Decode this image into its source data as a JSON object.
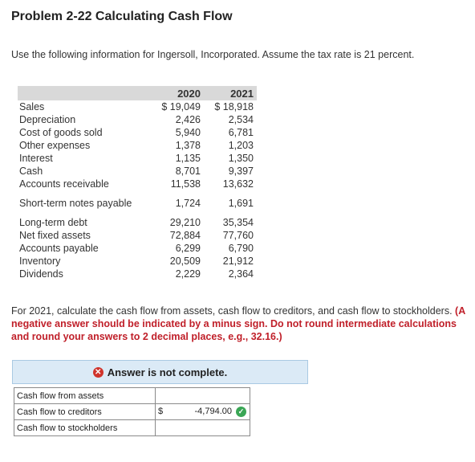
{
  "title": "Problem 2-22 Calculating Cash Flow",
  "intro": "Use the following information for Ingersoll, Incorporated. Assume the tax rate is 21 percent.",
  "table": {
    "headers": [
      "",
      "2020",
      "2021"
    ],
    "rows": [
      {
        "label": "Sales",
        "v2020": "$ 19,049",
        "v2021": "$ 18,918"
      },
      {
        "label": "Depreciation",
        "v2020": "2,426",
        "v2021": "2,534"
      },
      {
        "label": "Cost of goods sold",
        "v2020": "5,940",
        "v2021": "6,781"
      },
      {
        "label": "Other expenses",
        "v2020": "1,378",
        "v2021": "1,203"
      },
      {
        "label": "Interest",
        "v2020": "1,135",
        "v2021": "1,350"
      },
      {
        "label": "Cash",
        "v2020": "8,701",
        "v2021": "9,397"
      },
      {
        "label": "Accounts receivable",
        "v2020": "11,538",
        "v2021": "13,632"
      },
      {
        "label": "Short-term notes payable",
        "v2020": "1,724",
        "v2021": "1,691"
      },
      {
        "label": "Long-term debt",
        "v2020": "29,210",
        "v2021": "35,354"
      },
      {
        "label": "Net fixed assets",
        "v2020": "72,884",
        "v2021": "77,760"
      },
      {
        "label": "Accounts payable",
        "v2020": "6,299",
        "v2021": "6,790"
      },
      {
        "label": "Inventory",
        "v2020": "20,509",
        "v2021": "21,912"
      },
      {
        "label": "Dividends",
        "v2020": "2,229",
        "v2021": "2,364"
      }
    ]
  },
  "question": {
    "text": "For 2021, calculate the cash flow from assets, cash flow to creditors, and cash flow to stockholders.",
    "instruction": "(A negative answer should be indicated by a minus sign. Do not round intermediate calculations and round your answers to 2 decimal places, e.g., 32.16.)"
  },
  "answer_status": {
    "text": "Answer is not complete.",
    "icon": "x-circle-icon",
    "color": "#d0342c"
  },
  "answers": [
    {
      "label": "Cash flow from assets",
      "prefix": "",
      "value": "",
      "status": ""
    },
    {
      "label": "Cash flow to creditors",
      "prefix": "$",
      "value": "-4,794.00",
      "status": "correct"
    },
    {
      "label": "Cash flow to stockholders",
      "prefix": "",
      "value": "",
      "status": ""
    }
  ]
}
